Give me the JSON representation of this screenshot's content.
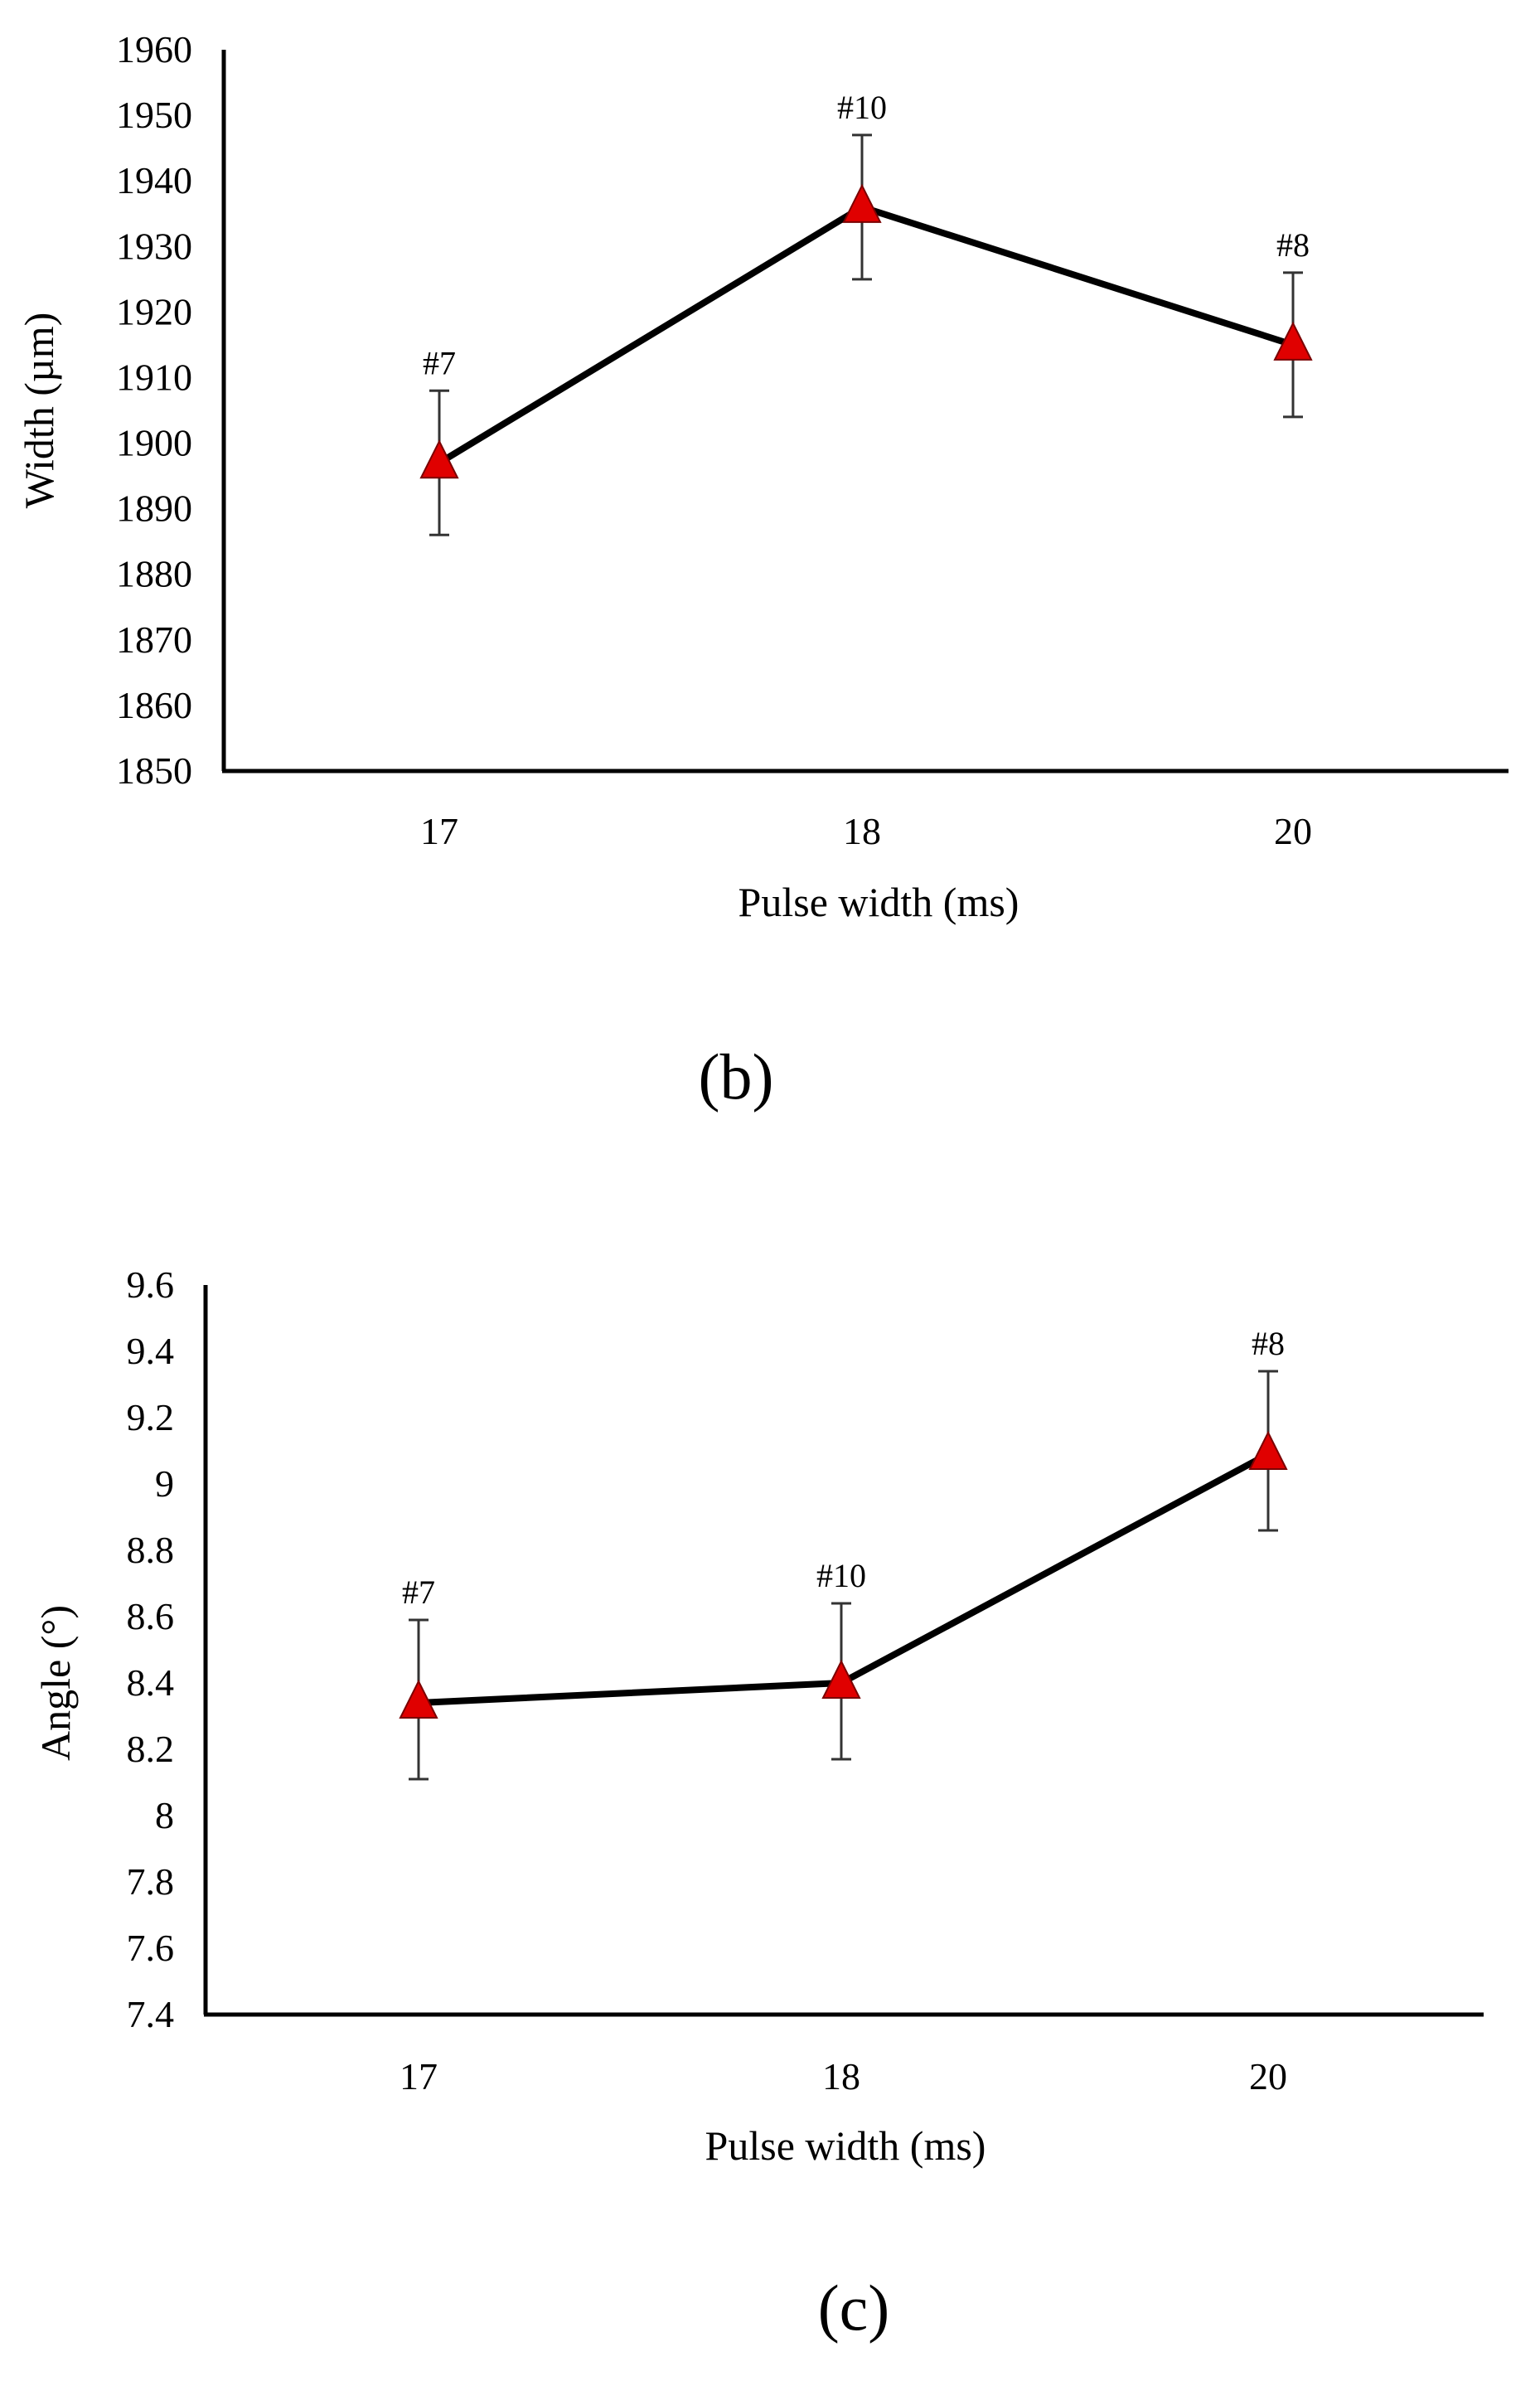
{
  "colors": {
    "marker_fill": "#e00000",
    "marker_stroke": "#7a0000",
    "line": "#000000",
    "error_bar": "#333333",
    "background": "#ffffff"
  },
  "chart_data": [
    {
      "type": "line",
      "panel_label": "(b)",
      "title": "",
      "xlabel": "Pulse width  (ms)",
      "ylabel": "Width (µm)",
      "categories": [
        "17",
        "18",
        "20"
      ],
      "values": [
        1897,
        1936,
        1915
      ],
      "error_plus": [
        11,
        11,
        11
      ],
      "error_minus": [
        11,
        11,
        11
      ],
      "point_labels": [
        "#7",
        "#10",
        "#8"
      ],
      "ylim": [
        1850,
        1960
      ],
      "yticks": [
        "1850",
        "1860",
        "1870",
        "1880",
        "1890",
        "1900",
        "1910",
        "1920",
        "1930",
        "1940",
        "1950",
        "1960"
      ],
      "marker": "triangle",
      "grid": false,
      "legend": "none"
    },
    {
      "type": "line",
      "panel_label": "(c)",
      "title": "",
      "xlabel": "Pulse width  (ms)",
      "ylabel": "Angle (°)",
      "categories": [
        "17",
        "18",
        "20"
      ],
      "values": [
        8.34,
        8.4,
        9.09
      ],
      "error_plus": [
        0.25,
        0.24,
        0.25
      ],
      "error_minus": [
        0.23,
        0.23,
        0.23
      ],
      "point_labels": [
        "#7",
        "#10",
        "#8"
      ],
      "ylim": [
        7.4,
        9.6
      ],
      "yticks": [
        "7.4",
        "7.6",
        "7.8",
        "8",
        "8.2",
        "8.4",
        "8.6",
        "8.8",
        "9",
        "9.2",
        "9.4",
        "9.6"
      ],
      "marker": "triangle",
      "grid": false,
      "legend": "none"
    }
  ]
}
